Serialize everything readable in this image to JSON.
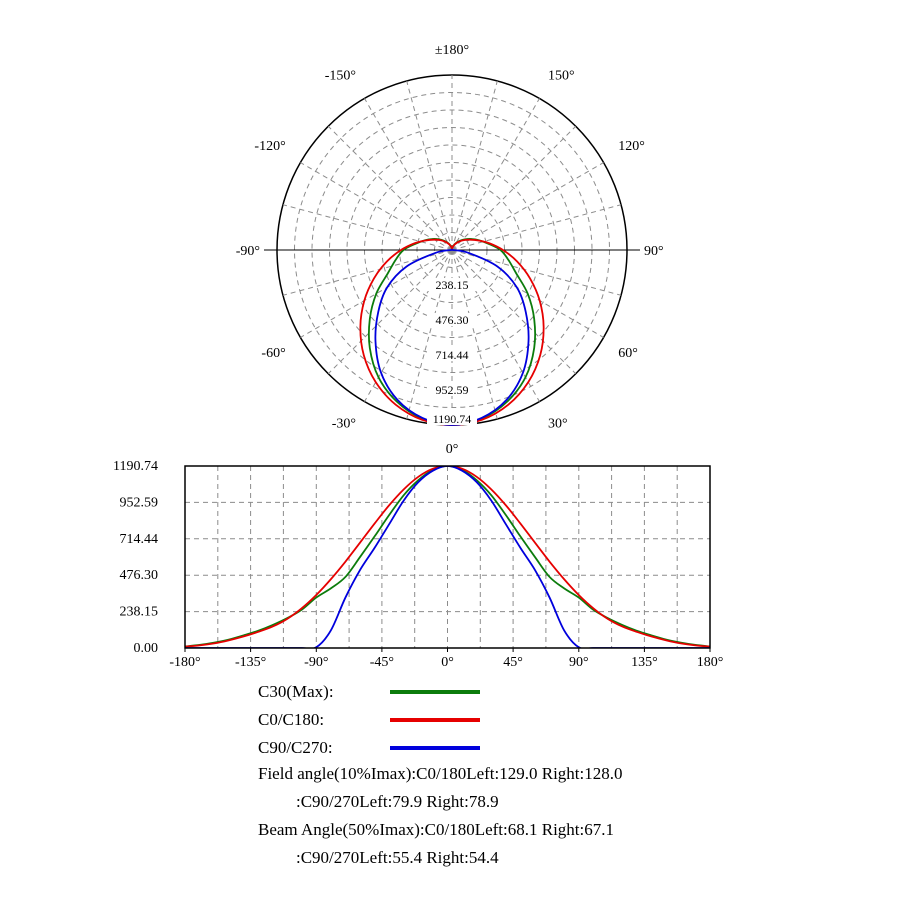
{
  "polar": {
    "angle_labels": [
      {
        "text": "±180°",
        "angle": 180
      },
      {
        "text": "-150°",
        "angle": -150
      },
      {
        "text": "150°",
        "angle": 150
      },
      {
        "text": "-120°",
        "angle": -120
      },
      {
        "text": "120°",
        "angle": 120
      },
      {
        "text": "-90°",
        "angle": -90
      },
      {
        "text": "90°",
        "angle": 90
      },
      {
        "text": "-60°",
        "angle": -60
      },
      {
        "text": "60°",
        "angle": 60
      },
      {
        "text": "-30°",
        "angle": -30
      },
      {
        "text": "30°",
        "angle": 30
      },
      {
        "text": "0°",
        "angle": 0
      }
    ],
    "ring_labels": [
      "238.15",
      "476.30",
      "714.44",
      "952.59",
      "1190.74"
    ]
  },
  "cartesian": {
    "x_tick_labels": [
      "-180°",
      "-135°",
      "-90°",
      "-45°",
      "0°",
      "45°",
      "90°",
      "135°",
      "180°"
    ],
    "y_tick_labels": [
      "1190.74",
      "952.59",
      "714.44",
      "476.30",
      "238.15",
      "0.00"
    ]
  },
  "legend": {
    "items": [
      "C30(Max):",
      "C0/C180:",
      "C90/C270:"
    ]
  },
  "annotations": {
    "lines": [
      "Field angle(10%Imax):C0/180Left:129.0 Right:128.0",
      ":C90/270Left:79.9 Right:78.9",
      "Beam Angle(50%Imax):C0/180Left:68.1 Right:67.1",
      ":C90/270Left:55.4 Right:54.4"
    ]
  },
  "colors": {
    "grid": "#8c8c8c",
    "axis": "#000000"
  },
  "chart_data": {
    "type": "line",
    "title": "",
    "xlabel": "",
    "ylabel": "",
    "xlim": [
      -180,
      180
    ],
    "ylim": [
      0,
      1190.74
    ],
    "y_ticks": [
      0,
      238.15,
      476.3,
      714.44,
      952.59,
      1190.74
    ],
    "x_ticks": [
      -180,
      -135,
      -90,
      -45,
      0,
      45,
      90,
      135,
      180
    ],
    "grid": true,
    "legend_position": "bottom-left",
    "x": [
      -180,
      -170,
      -160,
      -150,
      -140,
      -130,
      -120,
      -110,
      -100,
      -90,
      -80,
      -70,
      -60,
      -50,
      -40,
      -30,
      -20,
      -10,
      0,
      10,
      20,
      30,
      40,
      50,
      60,
      70,
      80,
      90,
      100,
      110,
      120,
      130,
      140,
      150,
      160,
      170,
      180
    ],
    "series": [
      {
        "name": "C30(Max)",
        "color": "#0c7c0c",
        "values": [
          10,
          20,
          35,
          55,
          82,
          112,
          150,
          195,
          250,
          330,
          390,
          465,
          595,
          730,
          870,
          1000,
          1098,
          1165,
          1190.74,
          1165,
          1098,
          1000,
          870,
          730,
          595,
          465,
          390,
          330,
          250,
          195,
          150,
          112,
          82,
          55,
          35,
          20,
          10
        ]
      },
      {
        "name": "C0/C180",
        "color": "#e60000",
        "values": [
          9,
          17,
          30,
          50,
          75,
          105,
          140,
          190,
          260,
          347,
          450,
          565,
          689,
          814,
          934,
          1038,
          1120,
          1173,
          1190.74,
          1173,
          1120,
          1038,
          934,
          814,
          689,
          565,
          450,
          347,
          260,
          190,
          140,
          105,
          75,
          50,
          30,
          17,
          9
        ]
      },
      {
        "name": "C90/C270",
        "color": "#0000dd",
        "values": [
          0,
          0,
          0,
          0,
          0,
          0,
          0,
          0,
          0,
          5,
          115,
          330,
          510,
          655,
          810,
          965,
          1085,
          1160,
          1190.74,
          1160,
          1085,
          965,
          810,
          655,
          510,
          330,
          115,
          5,
          0,
          0,
          0,
          0,
          0,
          0,
          0,
          0,
          0
        ]
      }
    ],
    "stats_text": [
      "Field angle(10%Imax):C0/180Left:129.0 Right:128.0",
      ":C90/270Left:79.9 Right:78.9",
      "Beam Angle(50%Imax):C0/180Left:68.1 Right:67.1",
      ":C90/270Left:55.4 Right:54.4"
    ]
  }
}
